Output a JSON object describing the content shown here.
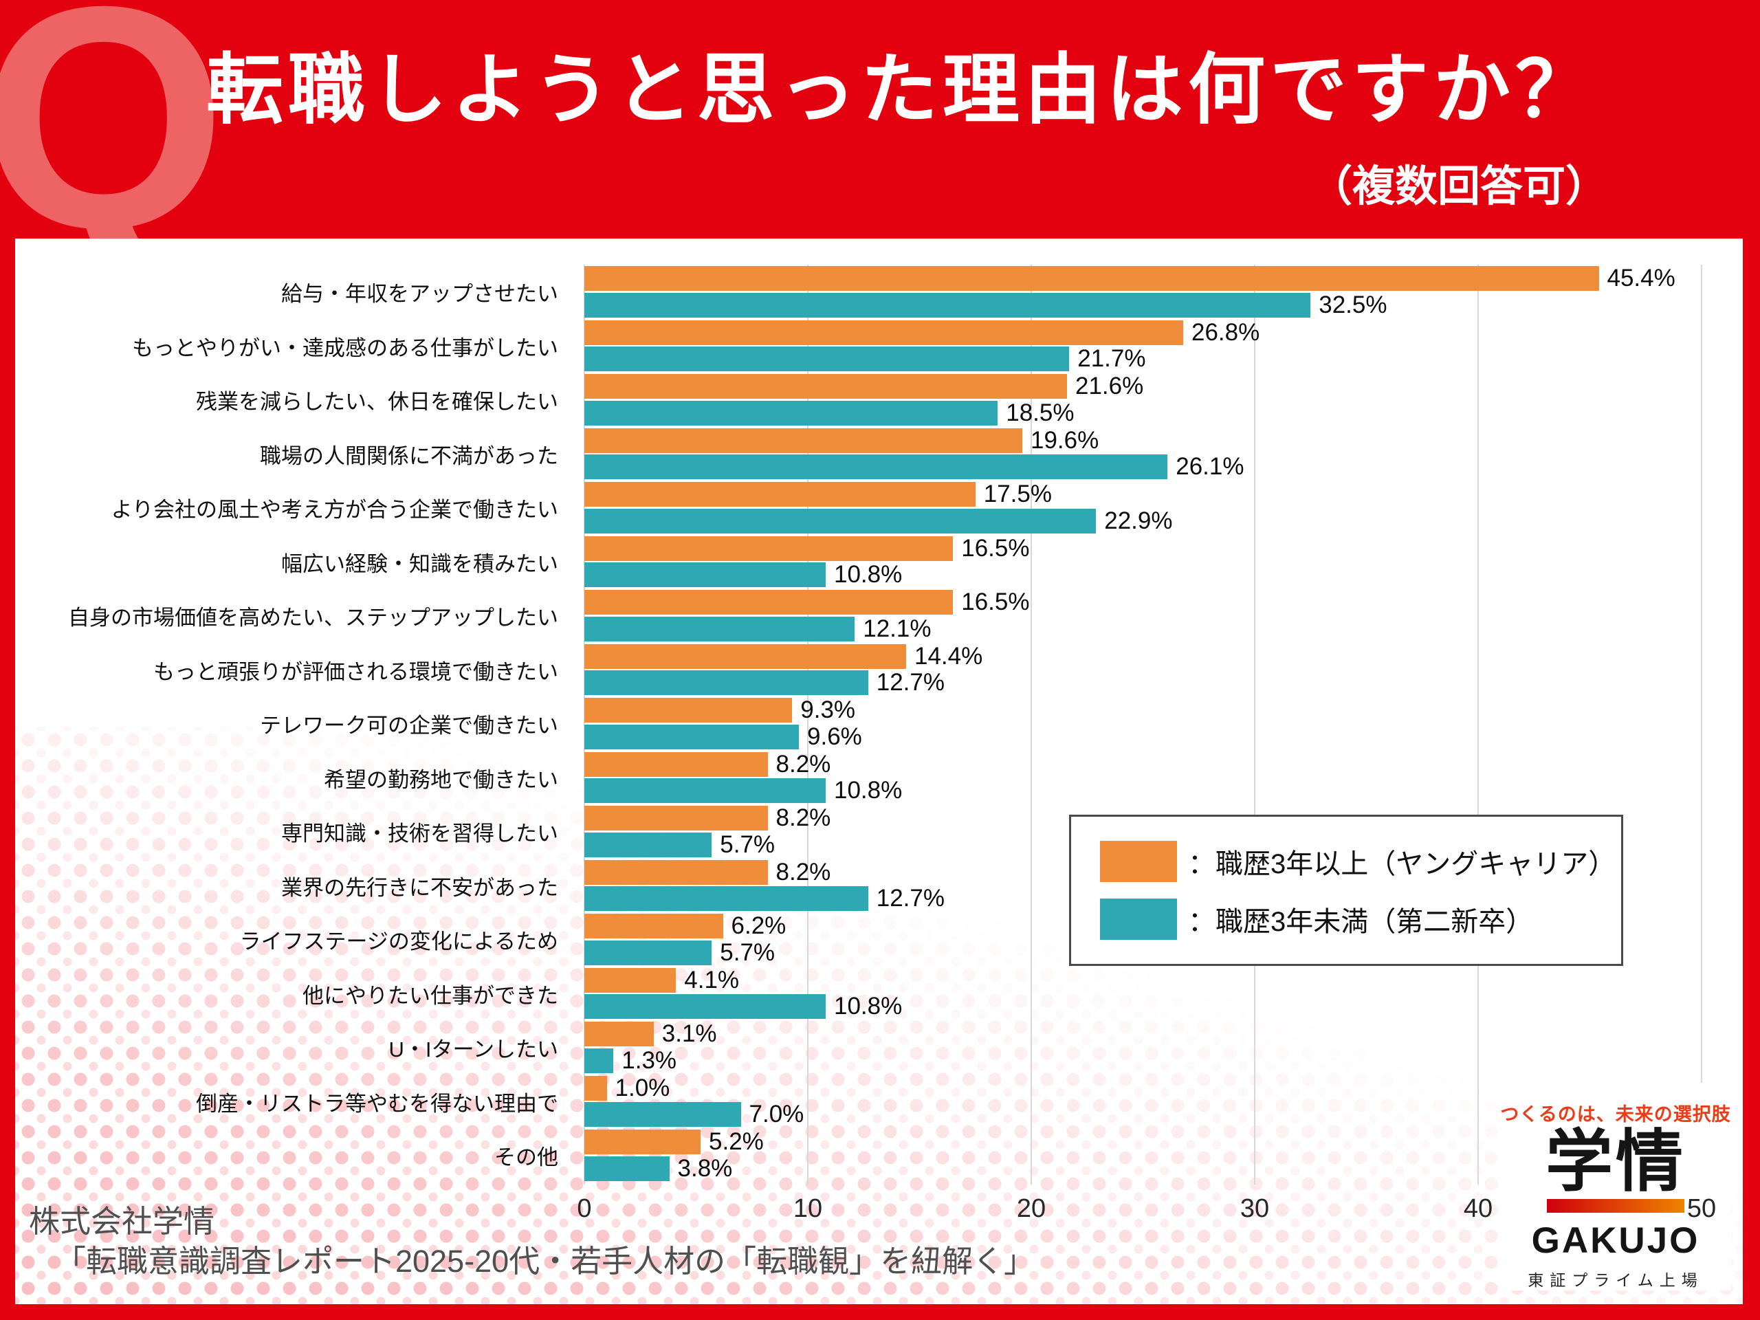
{
  "header": {
    "q_mark": "Q",
    "title": "転職しようと思った理由は何ですか？",
    "subtitle": "（複数回答可）"
  },
  "chart_data": {
    "type": "bar",
    "orientation": "horizontal",
    "title": "転職しようと思った理由は何ですか？（複数回答可）",
    "unit": "%",
    "categories": [
      "給与・年収をアップさせたい",
      "もっとやりがい・達成感のある仕事がしたい",
      "残業を減らしたい、休日を確保したい",
      "職場の人間関係に不満があった",
      "より会社の風土や考え方が合う企業で働きたい",
      "幅広い経験・知識を積みたい",
      "自身の市場価値を高めたい、ステップアップしたい",
      "もっと頑張りが評価される環境で働きたい",
      "テレワーク可の企業で働きたい",
      "希望の勤務地で働きたい",
      "専門知識・技術を習得したい",
      "業界の先行きに不安があった",
      "ライフステージの変化によるため",
      "他にやりたい仕事ができた",
      "U・Iターンしたい",
      "倒産・リストラ等やむを得ない理由で",
      "その他"
    ],
    "series": [
      {
        "name": "職歴3年以上（ヤングキャリア）",
        "color": "#ef8d3b",
        "values": [
          45.4,
          26.8,
          21.6,
          19.6,
          17.5,
          16.5,
          16.5,
          14.4,
          9.3,
          8.2,
          8.2,
          8.2,
          6.2,
          4.1,
          3.1,
          1.0,
          5.2
        ]
      },
      {
        "name": "職歴3年未満（第二新卒）",
        "color": "#2ea9b4",
        "values": [
          32.5,
          21.7,
          18.5,
          26.1,
          22.9,
          10.8,
          12.1,
          12.7,
          9.6,
          10.8,
          5.7,
          12.7,
          5.7,
          10.8,
          1.3,
          7.0,
          3.8
        ]
      }
    ],
    "xlim": [
      0,
      50
    ],
    "x_ticks": [
      0,
      10,
      20,
      30,
      40,
      50
    ],
    "grid": true,
    "legend_position": "middle-right",
    "value_label_format": "one-decimal-percent"
  },
  "legend": {
    "items": [
      {
        "label": "：職歴3年以上（ヤングキャリア）",
        "color": "#ef8d3b"
      },
      {
        "label": "：職歴3年未満（第二新卒）",
        "color": "#2ea9b4"
      }
    ]
  },
  "footer": {
    "line1": "株式会社学情",
    "line2": "「転職意識調査レポート2025-20代・若手人材の「転職観」を紐解く」"
  },
  "logo": {
    "tagline": "つくるのは、未来の選択肢",
    "kanji": "学情",
    "name": "GAKUJO",
    "listing": "東証プライム上場"
  },
  "colors": {
    "brand_red": "#e3000f",
    "q_mark_red": "#ee6465",
    "orange": "#ef8d3b",
    "teal": "#2ea9b4",
    "gridline": "#d8d8d8"
  }
}
